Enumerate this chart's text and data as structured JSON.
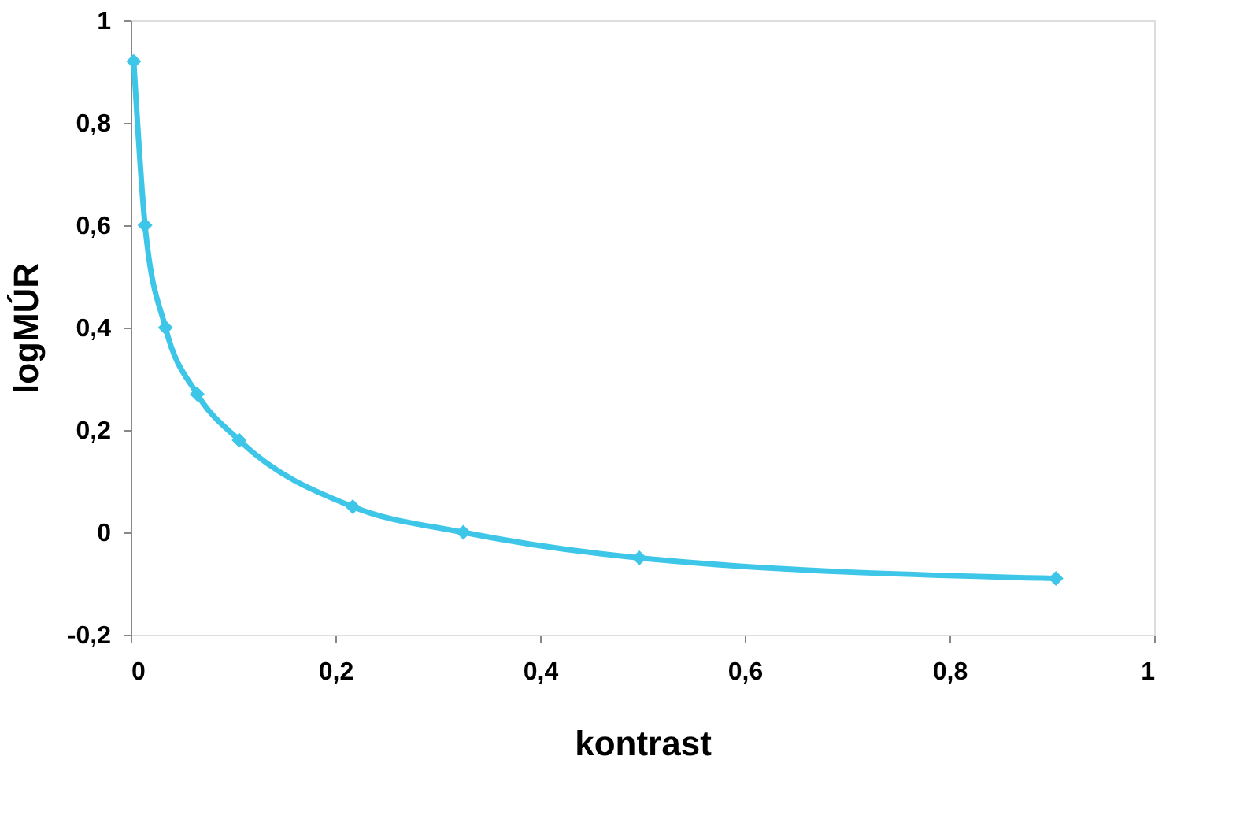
{
  "chart_data": {
    "type": "line",
    "xlabel": "kontrast",
    "ylabel": "logMÚR",
    "x": [
      0.003,
      0.014,
      0.034,
      0.065,
      0.106,
      0.217,
      0.325,
      0.497,
      0.904
    ],
    "series": [
      {
        "color": "#3ec6e8",
        "values": [
          0.92,
          0.6,
          0.4,
          0.27,
          0.18,
          0.05,
          0.0,
          -0.05,
          -0.09
        ]
      }
    ],
    "xlim": [
      0,
      1
    ],
    "ylim": [
      -0.2,
      1
    ],
    "xticks": [
      0,
      {
        "value": 0.2,
        "label": "0,2"
      },
      {
        "value": 0.4,
        "label": "0,4"
      },
      {
        "value": 0.6,
        "label": "0,6"
      },
      {
        "value": 0.8,
        "label": "0,8"
      },
      1
    ],
    "yticks": [
      {
        "value": -0.2,
        "label": "-0,2"
      },
      0,
      {
        "value": 0.2,
        "label": "0,2"
      },
      {
        "value": 0.4,
        "label": "0,4"
      },
      {
        "value": 0.6,
        "label": "0,6"
      },
      {
        "value": 0.8,
        "label": "0,8"
      },
      1
    ],
    "grid": false,
    "marker": "diamond",
    "line_style": "solid"
  }
}
